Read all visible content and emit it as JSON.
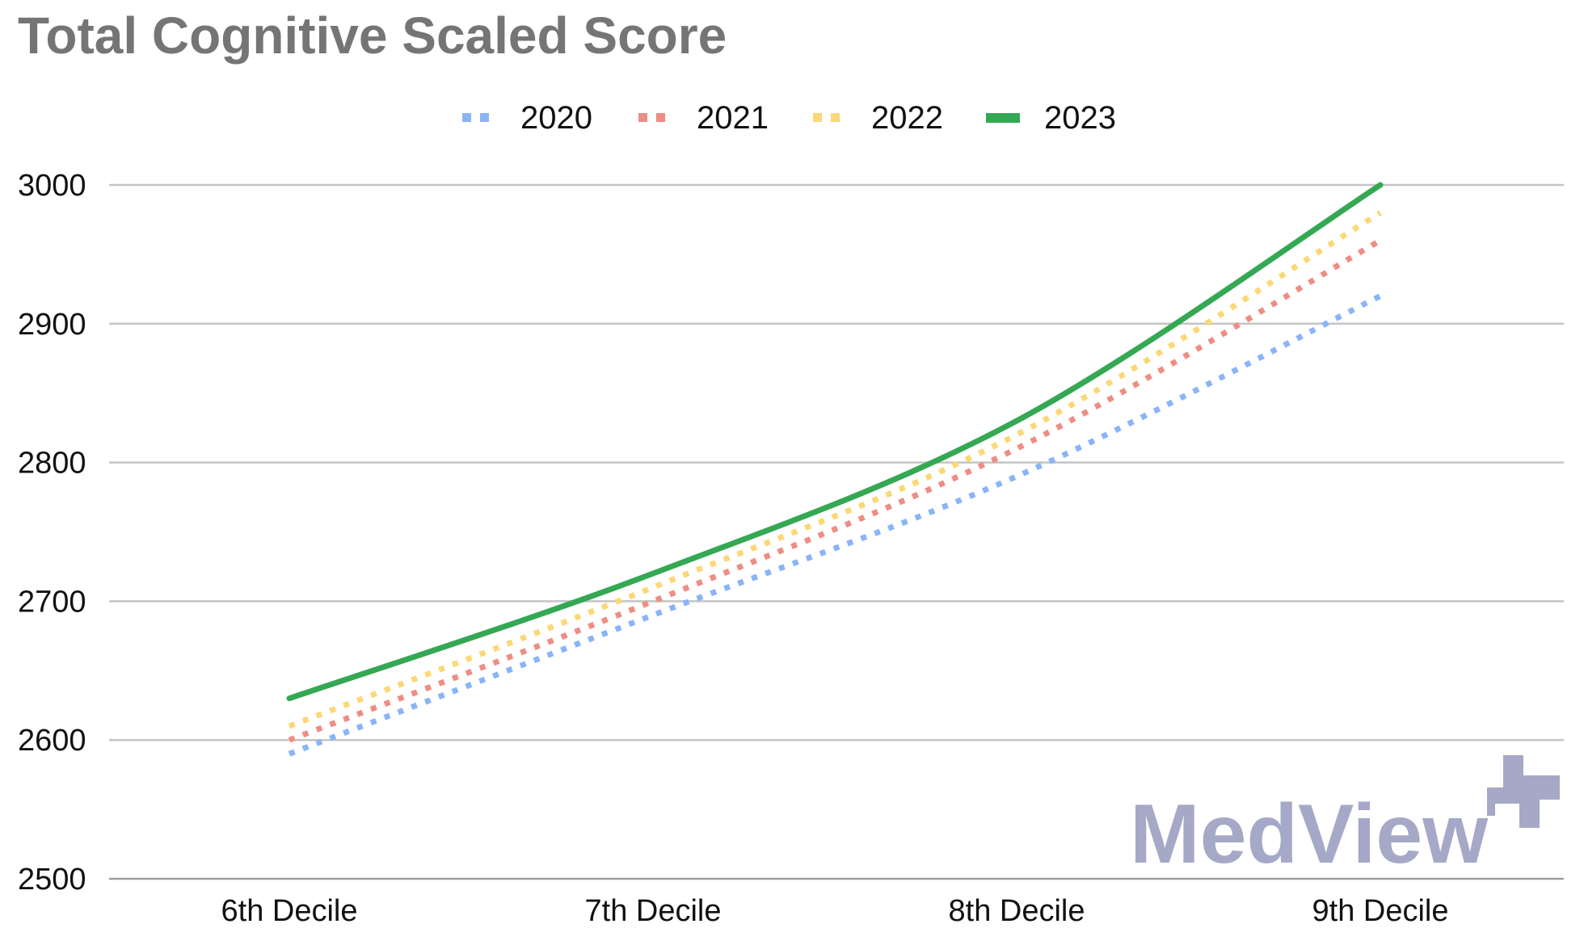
{
  "chart_data": {
    "type": "line",
    "title": "Total Cognitive Scaled Score",
    "categories": [
      "6th Decile",
      "7th Decile",
      "8th Decile",
      "9th Decile"
    ],
    "ylim": [
      2500,
      3000
    ],
    "yticks": [
      2500,
      2600,
      2700,
      2800,
      2900,
      3000
    ],
    "grid": true,
    "legend_position": "top-center",
    "series": [
      {
        "name": "2020",
        "values": [
          2590,
          2690,
          2790,
          2920
        ],
        "color": "#8ab4f8",
        "style": "dotted"
      },
      {
        "name": "2021",
        "values": [
          2600,
          2700,
          2810,
          2960
        ],
        "color": "#ee8d84",
        "style": "dotted"
      },
      {
        "name": "2022",
        "values": [
          2610,
          2710,
          2820,
          2980
        ],
        "color": "#fbd875",
        "style": "dotted"
      },
      {
        "name": "2023",
        "values": [
          2630,
          2720,
          2830,
          3000
        ],
        "color": "#34a853",
        "style": "solid"
      }
    ]
  },
  "watermark": {
    "text": "MedView",
    "color": "#a6a8c7",
    "icon": "medview-cross-icon"
  }
}
